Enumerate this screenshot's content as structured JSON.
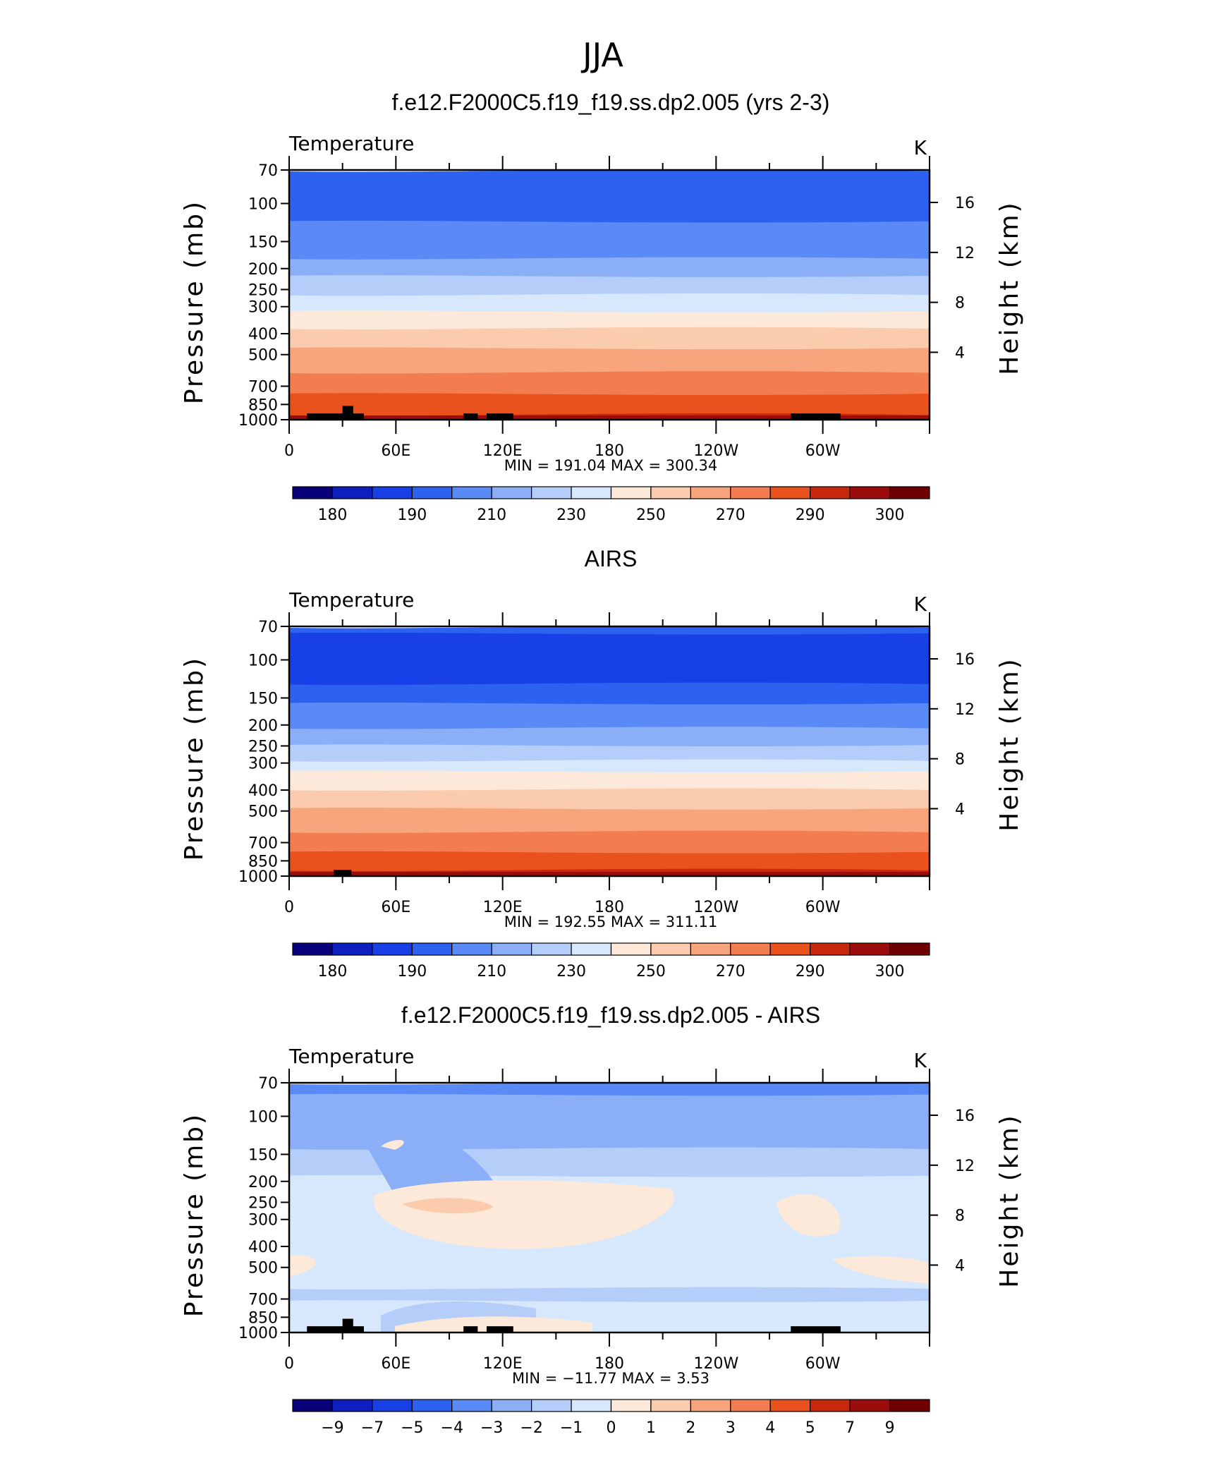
{
  "figure": {
    "title": "JJA"
  },
  "chart_data": [
    {
      "type": "contour",
      "title": "f.e12.F2000C5.f19_f19.ss.dp2.005 (yrs 2-3)",
      "left_label": "Temperature",
      "units": "K",
      "ylabel": "Pressure (mb)",
      "ylabel_right": "Height (km)",
      "yscale": "log",
      "ylim": [
        1000,
        70
      ],
      "y_ticks": [
        "70",
        "100",
        "150",
        "200",
        "250",
        "300",
        "400",
        "500",
        "700",
        "850",
        "1000"
      ],
      "y_tick_values": [
        70,
        100,
        150,
        200,
        250,
        300,
        400,
        500,
        700,
        850,
        1000
      ],
      "right_ticks": [
        "16",
        "12",
        "8",
        "4"
      ],
      "right_tick_values": [
        16,
        12,
        8,
        4
      ],
      "x_ticks": [
        "0",
        "60E",
        "120E",
        "180",
        "120W",
        "60W"
      ],
      "x_tick_values": [
        0,
        60,
        120,
        180,
        240,
        300
      ],
      "xlim": [
        0,
        360
      ],
      "stats": "MIN = 191.04   MAX = 300.34",
      "colorbar_labels": [
        "180",
        "190",
        "210",
        "230",
        "250",
        "270",
        "290",
        "300"
      ],
      "colorbar_colors": [
        "#08007a",
        "#0d1fbf",
        "#1740e6",
        "#2d62f0",
        "#5a8af5",
        "#8aaff7",
        "#b4cef9",
        "#d7e8fc",
        "#fde9d9",
        "#fbcbad",
        "#f8a47d",
        "#f37c50",
        "#e9521c",
        "#c8290d",
        "#9b0d0b",
        "#700000"
      ],
      "bands": [
        {
          "p": 70,
          "color": "#2d62f0"
        },
        {
          "p": 122,
          "color": "#5a8af5"
        },
        {
          "p": 178,
          "color": "#8aaff7"
        },
        {
          "p": 218,
          "color": "#b4cef9"
        },
        {
          "p": 262,
          "color": "#d7e8fc"
        },
        {
          "p": 318,
          "color": "#fde9d9"
        },
        {
          "p": 375,
          "color": "#fbcbad"
        },
        {
          "p": 470,
          "color": "#f8a47d"
        },
        {
          "p": 600,
          "color": "#f37c50"
        },
        {
          "p": 765,
          "color": "#e9521c"
        },
        {
          "p": 940,
          "color": "#c8290d"
        }
      ]
    },
    {
      "type": "contour",
      "title": "AIRS",
      "left_label": "Temperature",
      "units": "K",
      "ylabel": "Pressure (mb)",
      "ylabel_right": "Height (km)",
      "yscale": "log",
      "ylim": [
        1000,
        70
      ],
      "y_ticks": [
        "70",
        "100",
        "150",
        "200",
        "250",
        "300",
        "400",
        "500",
        "700",
        "850",
        "1000"
      ],
      "y_tick_values": [
        70,
        100,
        150,
        200,
        250,
        300,
        400,
        500,
        700,
        850,
        1000
      ],
      "right_ticks": [
        "16",
        "12",
        "8",
        "4"
      ],
      "right_tick_values": [
        16,
        12,
        8,
        4
      ],
      "x_ticks": [
        "0",
        "60E",
        "120E",
        "180",
        "120W",
        "60W"
      ],
      "x_tick_values": [
        0,
        60,
        120,
        180,
        240,
        300
      ],
      "xlim": [
        0,
        360
      ],
      "stats": "MIN = 192.55   MAX = 311.11",
      "colorbar_labels": [
        "180",
        "190",
        "210",
        "230",
        "250",
        "270",
        "290",
        "300"
      ],
      "colorbar_colors": [
        "#08007a",
        "#0d1fbf",
        "#1740e6",
        "#2d62f0",
        "#5a8af5",
        "#8aaff7",
        "#b4cef9",
        "#d7e8fc",
        "#fde9d9",
        "#fbcbad",
        "#f8a47d",
        "#f37c50",
        "#e9521c",
        "#c8290d",
        "#9b0d0b",
        "#700000"
      ],
      "bands": [
        {
          "p": 70,
          "color": "#2d62f0"
        },
        {
          "p": 76,
          "color": "#1740e6"
        },
        {
          "p": 128,
          "color": "#2d62f0"
        },
        {
          "p": 160,
          "color": "#5a8af5"
        },
        {
          "p": 205,
          "color": "#8aaff7"
        },
        {
          "p": 250,
          "color": "#b4cef9"
        },
        {
          "p": 290,
          "color": "#d7e8fc"
        },
        {
          "p": 330,
          "color": "#fde9d9"
        },
        {
          "p": 395,
          "color": "#fbcbad"
        },
        {
          "p": 490,
          "color": "#f8a47d"
        },
        {
          "p": 620,
          "color": "#f37c50"
        },
        {
          "p": 780,
          "color": "#e9521c"
        },
        {
          "p": 930,
          "color": "#c8290d"
        }
      ]
    },
    {
      "type": "contour",
      "title": "f.e12.F2000C5.f19_f19.ss.dp2.005 - AIRS",
      "left_label": "Temperature",
      "units": "K",
      "ylabel": "Pressure (mb)",
      "ylabel_right": "Height (km)",
      "yscale": "log",
      "ylim": [
        1000,
        70
      ],
      "y_ticks": [
        "70",
        "100",
        "150",
        "200",
        "250",
        "300",
        "400",
        "500",
        "700",
        "850",
        "1000"
      ],
      "y_tick_values": [
        70,
        100,
        150,
        200,
        250,
        300,
        400,
        500,
        700,
        850,
        1000
      ],
      "right_ticks": [
        "16",
        "12",
        "8",
        "4"
      ],
      "right_tick_values": [
        16,
        12,
        8,
        4
      ],
      "x_ticks": [
        "0",
        "60E",
        "120E",
        "180",
        "120W",
        "60W"
      ],
      "x_tick_values": [
        0,
        60,
        120,
        180,
        240,
        300
      ],
      "xlim": [
        0,
        360
      ],
      "stats": "MIN = −11.77   MAX =      3.53",
      "colorbar_labels": [
        "−9",
        "−7",
        "−5",
        "−4",
        "−3",
        "−2",
        "−1",
        "0",
        "1",
        "2",
        "3",
        "4",
        "5",
        "7",
        "9"
      ],
      "colorbar_colors": [
        "#08007a",
        "#0d1fbf",
        "#1740e6",
        "#2d62f0",
        "#5a8af5",
        "#8aaff7",
        "#b4cef9",
        "#d7e8fc",
        "#fde9d9",
        "#fbcbad",
        "#f8a47d",
        "#f37c50",
        "#e9521c",
        "#c8290d",
        "#9b0d0b",
        "#700000"
      ],
      "bands": [
        {
          "p": 70,
          "color": "#5a8af5"
        },
        {
          "p": 80,
          "color": "#8aaff7"
        },
        {
          "p": 140,
          "color": "#b4cef9"
        },
        {
          "p": 190,
          "color": "#d7e8fc"
        },
        {
          "p": 620,
          "color": "#b4cef9"
        },
        {
          "p": 720,
          "color": "#d7e8fc"
        }
      ]
    }
  ]
}
